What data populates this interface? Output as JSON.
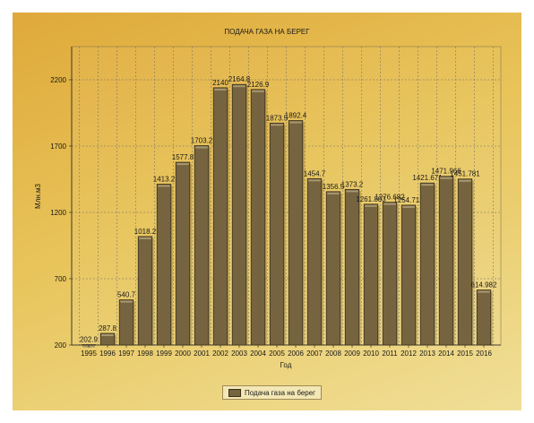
{
  "chart_data": {
    "type": "bar",
    "title": "ПОДАЧА ГАЗА НА БЕРЕГ",
    "xlabel": "Год",
    "ylabel": "Млн.м3",
    "categories": [
      "1995",
      "1996",
      "1997",
      "1998",
      "1999",
      "2000",
      "2001",
      "2002",
      "2003",
      "2004",
      "2005",
      "2006",
      "2007",
      "2008",
      "2009",
      "2010",
      "2011",
      "2012",
      "2013",
      "2014",
      "2015",
      "2016"
    ],
    "series": [
      {
        "name": "Подача газа на берег",
        "values": [
          202.9,
          287.8,
          540.7,
          1018.2,
          1413.2,
          1577.8,
          1703.2,
          2140,
          2164.8,
          2126.9,
          1873.5,
          1892.4,
          1454.7,
          1356.5,
          1373.2,
          1261.803,
          1276.682,
          1254.713,
          1421.671,
          1471.966,
          1451.781,
          614.982
        ],
        "labels": [
          "202.9",
          "287.8",
          "540.7",
          "1018.2",
          "1413.2",
          "1577.8",
          "1703.2",
          "2140",
          "2164.8",
          "2126.9",
          "1873.5",
          "1892.4",
          "1454.7",
          "1356.5",
          "1373.2",
          "1261.803",
          "1276.682",
          "1254.713",
          "1421.671",
          "1471.966",
          "1451.781",
          "614.982"
        ]
      }
    ],
    "yticks": [
      200,
      700,
      1200,
      1700,
      2200
    ],
    "ylim": [
      200,
      2450
    ],
    "grid": true,
    "legend_position": "bottom",
    "colors": {
      "bar": "#766440",
      "bar_edge": "#3b301b",
      "grid": "#6b6b6b"
    }
  }
}
